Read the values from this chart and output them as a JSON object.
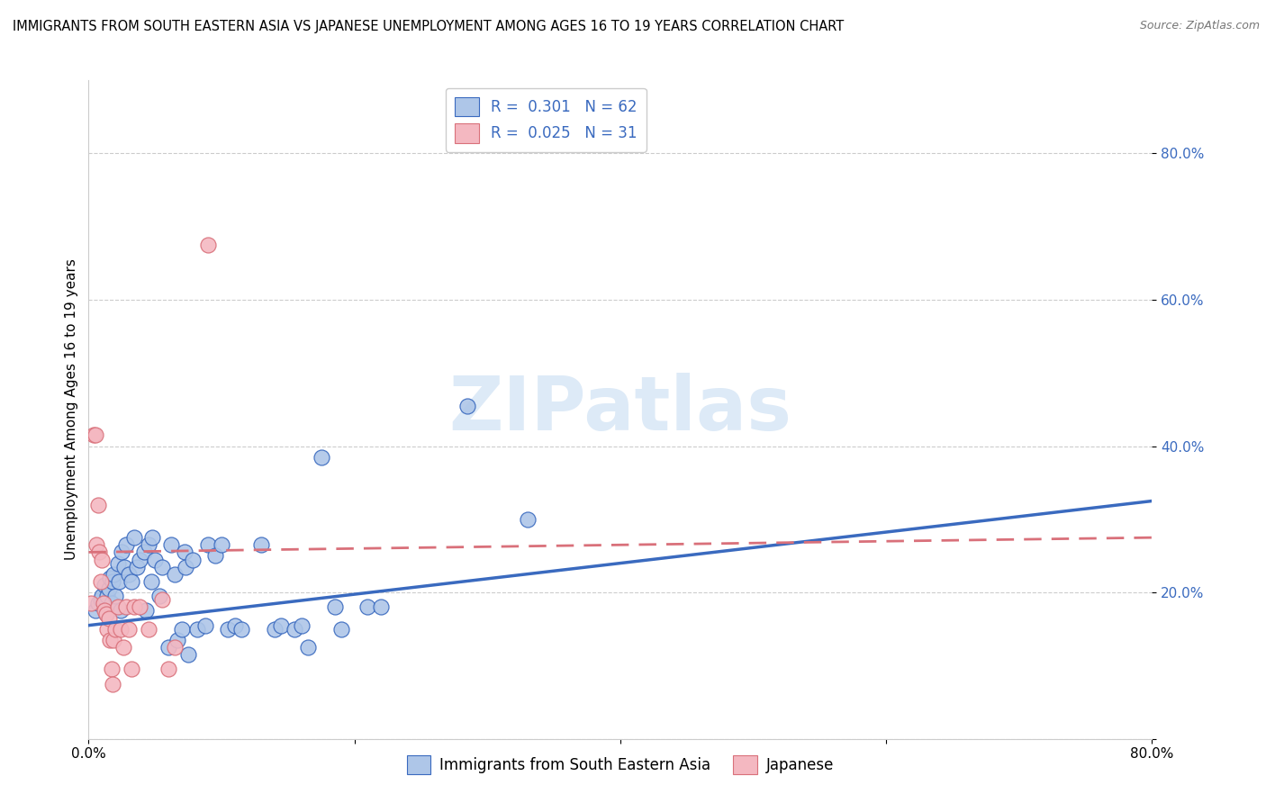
{
  "title": "IMMIGRANTS FROM SOUTH EASTERN ASIA VS JAPANESE UNEMPLOYMENT AMONG AGES 16 TO 19 YEARS CORRELATION CHART",
  "source": "Source: ZipAtlas.com",
  "ylabel": "Unemployment Among Ages 16 to 19 years",
  "xlim": [
    0.0,
    0.8
  ],
  "ylim": [
    0.0,
    0.9
  ],
  "ytick_vals": [
    0.0,
    0.2,
    0.4,
    0.6,
    0.8
  ],
  "ytick_labels": [
    "",
    "20.0%",
    "40.0%",
    "60.0%",
    "80.0%"
  ],
  "xtick_vals": [
    0.0,
    0.2,
    0.4,
    0.6,
    0.8
  ],
  "xtick_labels": [
    "0.0%",
    "",
    "",
    "",
    "80.0%"
  ],
  "legend1_color": "#aec6e8",
  "legend2_color": "#f4b8c1",
  "line1_color": "#3a6abf",
  "line2_color": "#d9707a",
  "tick_color": "#3a6abf",
  "watermark_text": "ZIPatlas",
  "watermark_color": "#ddeaf7",
  "scatter_blue": [
    [
      0.005,
      0.175
    ],
    [
      0.007,
      0.185
    ],
    [
      0.009,
      0.19
    ],
    [
      0.01,
      0.195
    ],
    [
      0.012,
      0.21
    ],
    [
      0.013,
      0.17
    ],
    [
      0.014,
      0.195
    ],
    [
      0.015,
      0.205
    ],
    [
      0.016,
      0.22
    ],
    [
      0.017,
      0.185
    ],
    [
      0.018,
      0.215
    ],
    [
      0.019,
      0.225
    ],
    [
      0.02,
      0.195
    ],
    [
      0.022,
      0.24
    ],
    [
      0.023,
      0.215
    ],
    [
      0.024,
      0.175
    ],
    [
      0.025,
      0.255
    ],
    [
      0.027,
      0.235
    ],
    [
      0.028,
      0.265
    ],
    [
      0.03,
      0.225
    ],
    [
      0.032,
      0.215
    ],
    [
      0.034,
      0.275
    ],
    [
      0.036,
      0.235
    ],
    [
      0.038,
      0.245
    ],
    [
      0.042,
      0.255
    ],
    [
      0.043,
      0.175
    ],
    [
      0.045,
      0.265
    ],
    [
      0.047,
      0.215
    ],
    [
      0.048,
      0.275
    ],
    [
      0.05,
      0.245
    ],
    [
      0.053,
      0.195
    ],
    [
      0.055,
      0.235
    ],
    [
      0.06,
      0.125
    ],
    [
      0.062,
      0.265
    ],
    [
      0.065,
      0.225
    ],
    [
      0.067,
      0.135
    ],
    [
      0.07,
      0.15
    ],
    [
      0.072,
      0.255
    ],
    [
      0.073,
      0.235
    ],
    [
      0.075,
      0.115
    ],
    [
      0.078,
      0.245
    ],
    [
      0.082,
      0.15
    ],
    [
      0.088,
      0.155
    ],
    [
      0.09,
      0.265
    ],
    [
      0.095,
      0.25
    ],
    [
      0.1,
      0.265
    ],
    [
      0.105,
      0.15
    ],
    [
      0.11,
      0.155
    ],
    [
      0.115,
      0.15
    ],
    [
      0.13,
      0.265
    ],
    [
      0.14,
      0.15
    ],
    [
      0.145,
      0.155
    ],
    [
      0.155,
      0.15
    ],
    [
      0.16,
      0.155
    ],
    [
      0.165,
      0.125
    ],
    [
      0.175,
      0.385
    ],
    [
      0.185,
      0.18
    ],
    [
      0.19,
      0.15
    ],
    [
      0.21,
      0.18
    ],
    [
      0.22,
      0.18
    ],
    [
      0.285,
      0.455
    ],
    [
      0.33,
      0.3
    ]
  ],
  "scatter_pink": [
    [
      0.002,
      0.185
    ],
    [
      0.004,
      0.415
    ],
    [
      0.005,
      0.415
    ],
    [
      0.006,
      0.265
    ],
    [
      0.007,
      0.32
    ],
    [
      0.008,
      0.255
    ],
    [
      0.009,
      0.215
    ],
    [
      0.01,
      0.245
    ],
    [
      0.011,
      0.185
    ],
    [
      0.012,
      0.175
    ],
    [
      0.013,
      0.17
    ],
    [
      0.014,
      0.15
    ],
    [
      0.015,
      0.165
    ],
    [
      0.016,
      0.135
    ],
    [
      0.017,
      0.095
    ],
    [
      0.018,
      0.075
    ],
    [
      0.019,
      0.135
    ],
    [
      0.02,
      0.15
    ],
    [
      0.022,
      0.18
    ],
    [
      0.024,
      0.15
    ],
    [
      0.026,
      0.125
    ],
    [
      0.028,
      0.18
    ],
    [
      0.03,
      0.15
    ],
    [
      0.032,
      0.095
    ],
    [
      0.034,
      0.18
    ],
    [
      0.038,
      0.18
    ],
    [
      0.045,
      0.15
    ],
    [
      0.055,
      0.19
    ],
    [
      0.06,
      0.095
    ],
    [
      0.065,
      0.125
    ],
    [
      0.09,
      0.675
    ]
  ],
  "line1_y_start": 0.155,
  "line1_y_end": 0.325,
  "line2_y_start": 0.255,
  "line2_y_end": 0.275,
  "legend_R1": "R =  0.301",
  "legend_N1": "N = 62",
  "legend_R2": "R =  0.025",
  "legend_N2": "N = 31",
  "bottom_legend": [
    "Immigrants from South Eastern Asia",
    "Japanese"
  ],
  "grid_color": "#cccccc",
  "title_fontsize": 10.5,
  "source_fontsize": 9,
  "tick_fontsize": 11
}
